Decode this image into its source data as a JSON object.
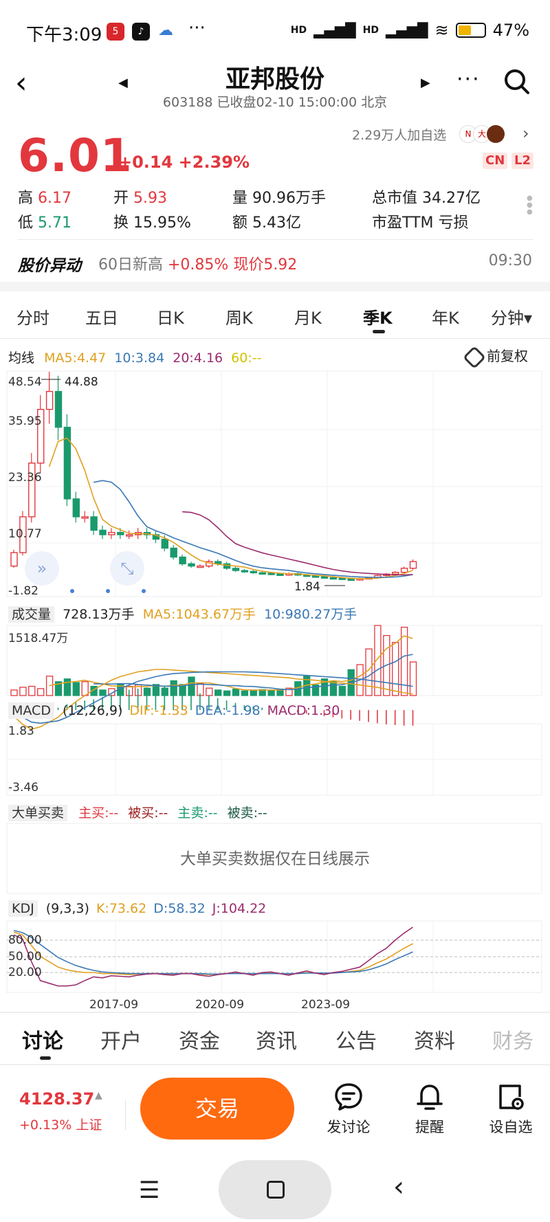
{
  "status_bar": {
    "time": "下午3:09",
    "app_icons": [
      "5",
      "♪"
    ],
    "signal": "HD",
    "battery": "47%",
    "battery_level": 0.47
  },
  "header": {
    "title": "亚邦股份",
    "subtitle": "603188 已收盘02-10 15:00:00 北京"
  },
  "quote": {
    "price": "6.01",
    "change": "+0.14 +2.39%",
    "followers": "2.29万人加自选",
    "badges": [
      "CN",
      "L2"
    ],
    "high_label": "高",
    "high": "6.17",
    "open_label": "开",
    "open": "5.93",
    "volume": "量 90.96万手",
    "market_cap": "总市值 34.27亿",
    "low_label": "低",
    "low": "5.71",
    "turnover": "换 15.95%",
    "amount": "额 5.43亿",
    "pe": "市盈TTM 亏损"
  },
  "alert": {
    "title": "股价异动",
    "body_prefix": "60日新高",
    "body_value": "+0.85% 现价5.92",
    "time": "09:30"
  },
  "period_tabs": [
    "分时",
    "五日",
    "日K",
    "周K",
    "月K",
    "季K",
    "年K",
    "分钟▾"
  ],
  "active_period": 5,
  "kline": {
    "title": "均线",
    "ma5": "MA5:4.47",
    "ma10": "10:3.84",
    "ma20": "20:4.16",
    "ma60": "60:--",
    "adjust": "前复权",
    "y_ticks": [
      "48.54",
      "35.95",
      "23.36",
      "10.77",
      "-1.82"
    ],
    "max_label": "44.88",
    "min_label": "1.84"
  },
  "volume": {
    "title": "成交量",
    "value": "728.13万手",
    "ma5": "MA5:1043.67万手",
    "ma10": "10:980.27万手",
    "max_tick": "1518.47万"
  },
  "macd": {
    "title": "MACD",
    "params": "(12,26,9)",
    "dif": "DIF:-1.33",
    "dea": "DEA:-1.98",
    "macd": "MACD:1.30",
    "top_tick": "1.83",
    "bottom_tick": "-3.46"
  },
  "big_order": {
    "title": "大单买卖",
    "main_buy": "主买:--",
    "passive_buy": "被买:--",
    "main_sell": "主卖:--",
    "passive_sell": "被卖:--",
    "notice": "大单买卖数据仅在日线展示"
  },
  "kdj": {
    "title": "KDJ",
    "params": "(9,3,3)",
    "k": "K:73.62",
    "d": "D:58.32",
    "j": "J:104.22",
    "ticks": [
      "80.00",
      "50.00",
      "20.00"
    ],
    "x_ticks": [
      "2017-09",
      "2020-09",
      "2023-09"
    ]
  },
  "bottom_tabs": [
    "讨论",
    "开户",
    "资金",
    "资讯",
    "公告",
    "资料",
    "财务"
  ],
  "action_bar": {
    "index_value": "4128.37",
    "index_change": "+0.13% 上证",
    "trade": "交易",
    "discuss": "发讨论",
    "remind": "提醒",
    "watchlist": "设自选"
  },
  "colors": {
    "up": "#e2373d",
    "down": "#1a9a6c",
    "ma5": "#e0a020",
    "ma10": "#3a78b5",
    "ma20": "#9b2c6e",
    "ma60": "#d4c000",
    "trade_button": "#ff6a0f"
  }
}
